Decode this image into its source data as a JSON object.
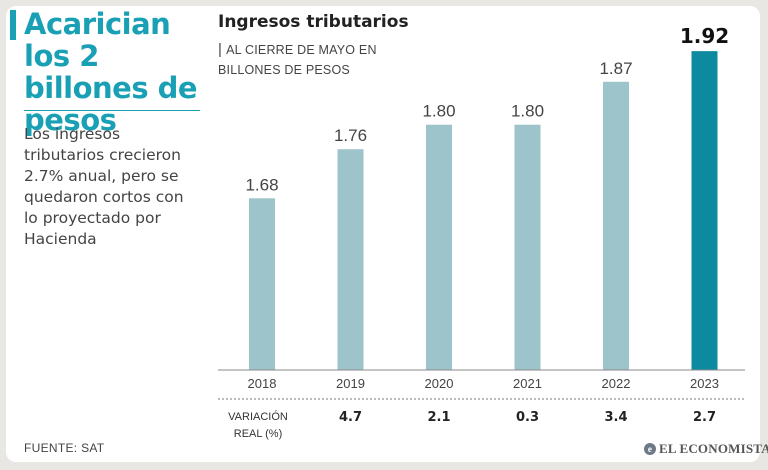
{
  "headline": "Acarician los 2 billones de pesos",
  "body": "Los ingresos tributarios crecieron 2.7% anual, pero se quedaron cortos con lo proyectado por Hacienda",
  "source": "FUENTE: SAT",
  "brand": "EL ECONOMISTA",
  "colors": {
    "accent": "#1aa0b5",
    "bar": "#9ec4cb",
    "highlight": "#0e8aa0"
  },
  "chart_data": {
    "type": "bar",
    "title": "Ingresos tributarios",
    "subtitle": "AL CIERRE DE MAYO EN BILLONES DE PESOS",
    "categories": [
      "2018",
      "2019",
      "2020",
      "2021",
      "2022",
      "2023"
    ],
    "values": [
      1.68,
      1.76,
      1.8,
      1.8,
      1.87,
      1.92
    ],
    "value_labels": [
      "1.68",
      "1.76",
      "1.80",
      "1.80",
      "1.87",
      "1.92"
    ],
    "highlight_index": 5,
    "ylim": [
      1.4,
      1.93
    ],
    "xlabel": "",
    "ylabel": "",
    "variation": {
      "label_line1": "VARIACIÓN",
      "label_line2": "REAL (%)",
      "values": [
        "4.7",
        "2.1",
        "0.3",
        "3.4",
        "2.7"
      ],
      "categories": [
        "2019",
        "2020",
        "2021",
        "2022",
        "2023"
      ]
    }
  }
}
